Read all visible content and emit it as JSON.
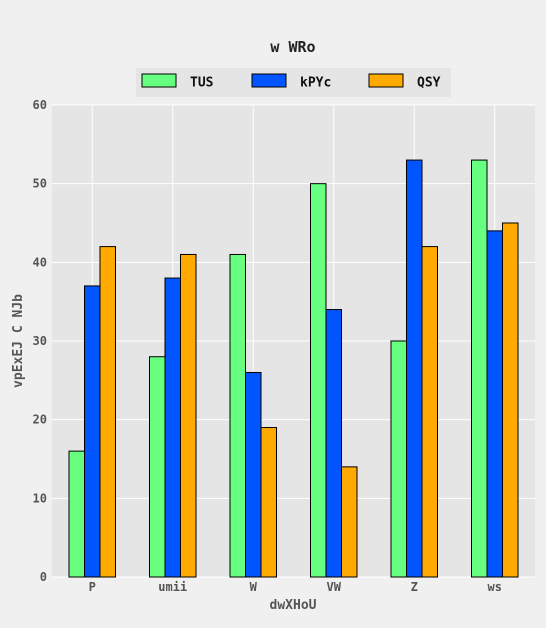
{
  "chart_data": {
    "type": "bar",
    "title": "w WRo",
    "xlabel": "dwXHoU",
    "ylabel": "vpExEJ C NJb",
    "categories": [
      "P",
      "umii",
      "W",
      "VW",
      "Z",
      "ws"
    ],
    "series": [
      {
        "name": "TUS",
        "color": "#66ff80",
        "values": [
          16,
          28,
          41,
          50,
          30,
          53
        ]
      },
      {
        "name": "kPYc",
        "color": "#0055ff",
        "values": [
          37,
          38,
          26,
          34,
          53,
          44
        ]
      },
      {
        "name": "QSY",
        "color": "#ffaa00",
        "values": [
          42,
          41,
          19,
          14,
          42,
          45
        ]
      }
    ],
    "ylim": [
      0,
      60
    ],
    "yticks": [
      0,
      10,
      20,
      30,
      40,
      50,
      60
    ],
    "grid": true,
    "legend_position": "top-center"
  }
}
